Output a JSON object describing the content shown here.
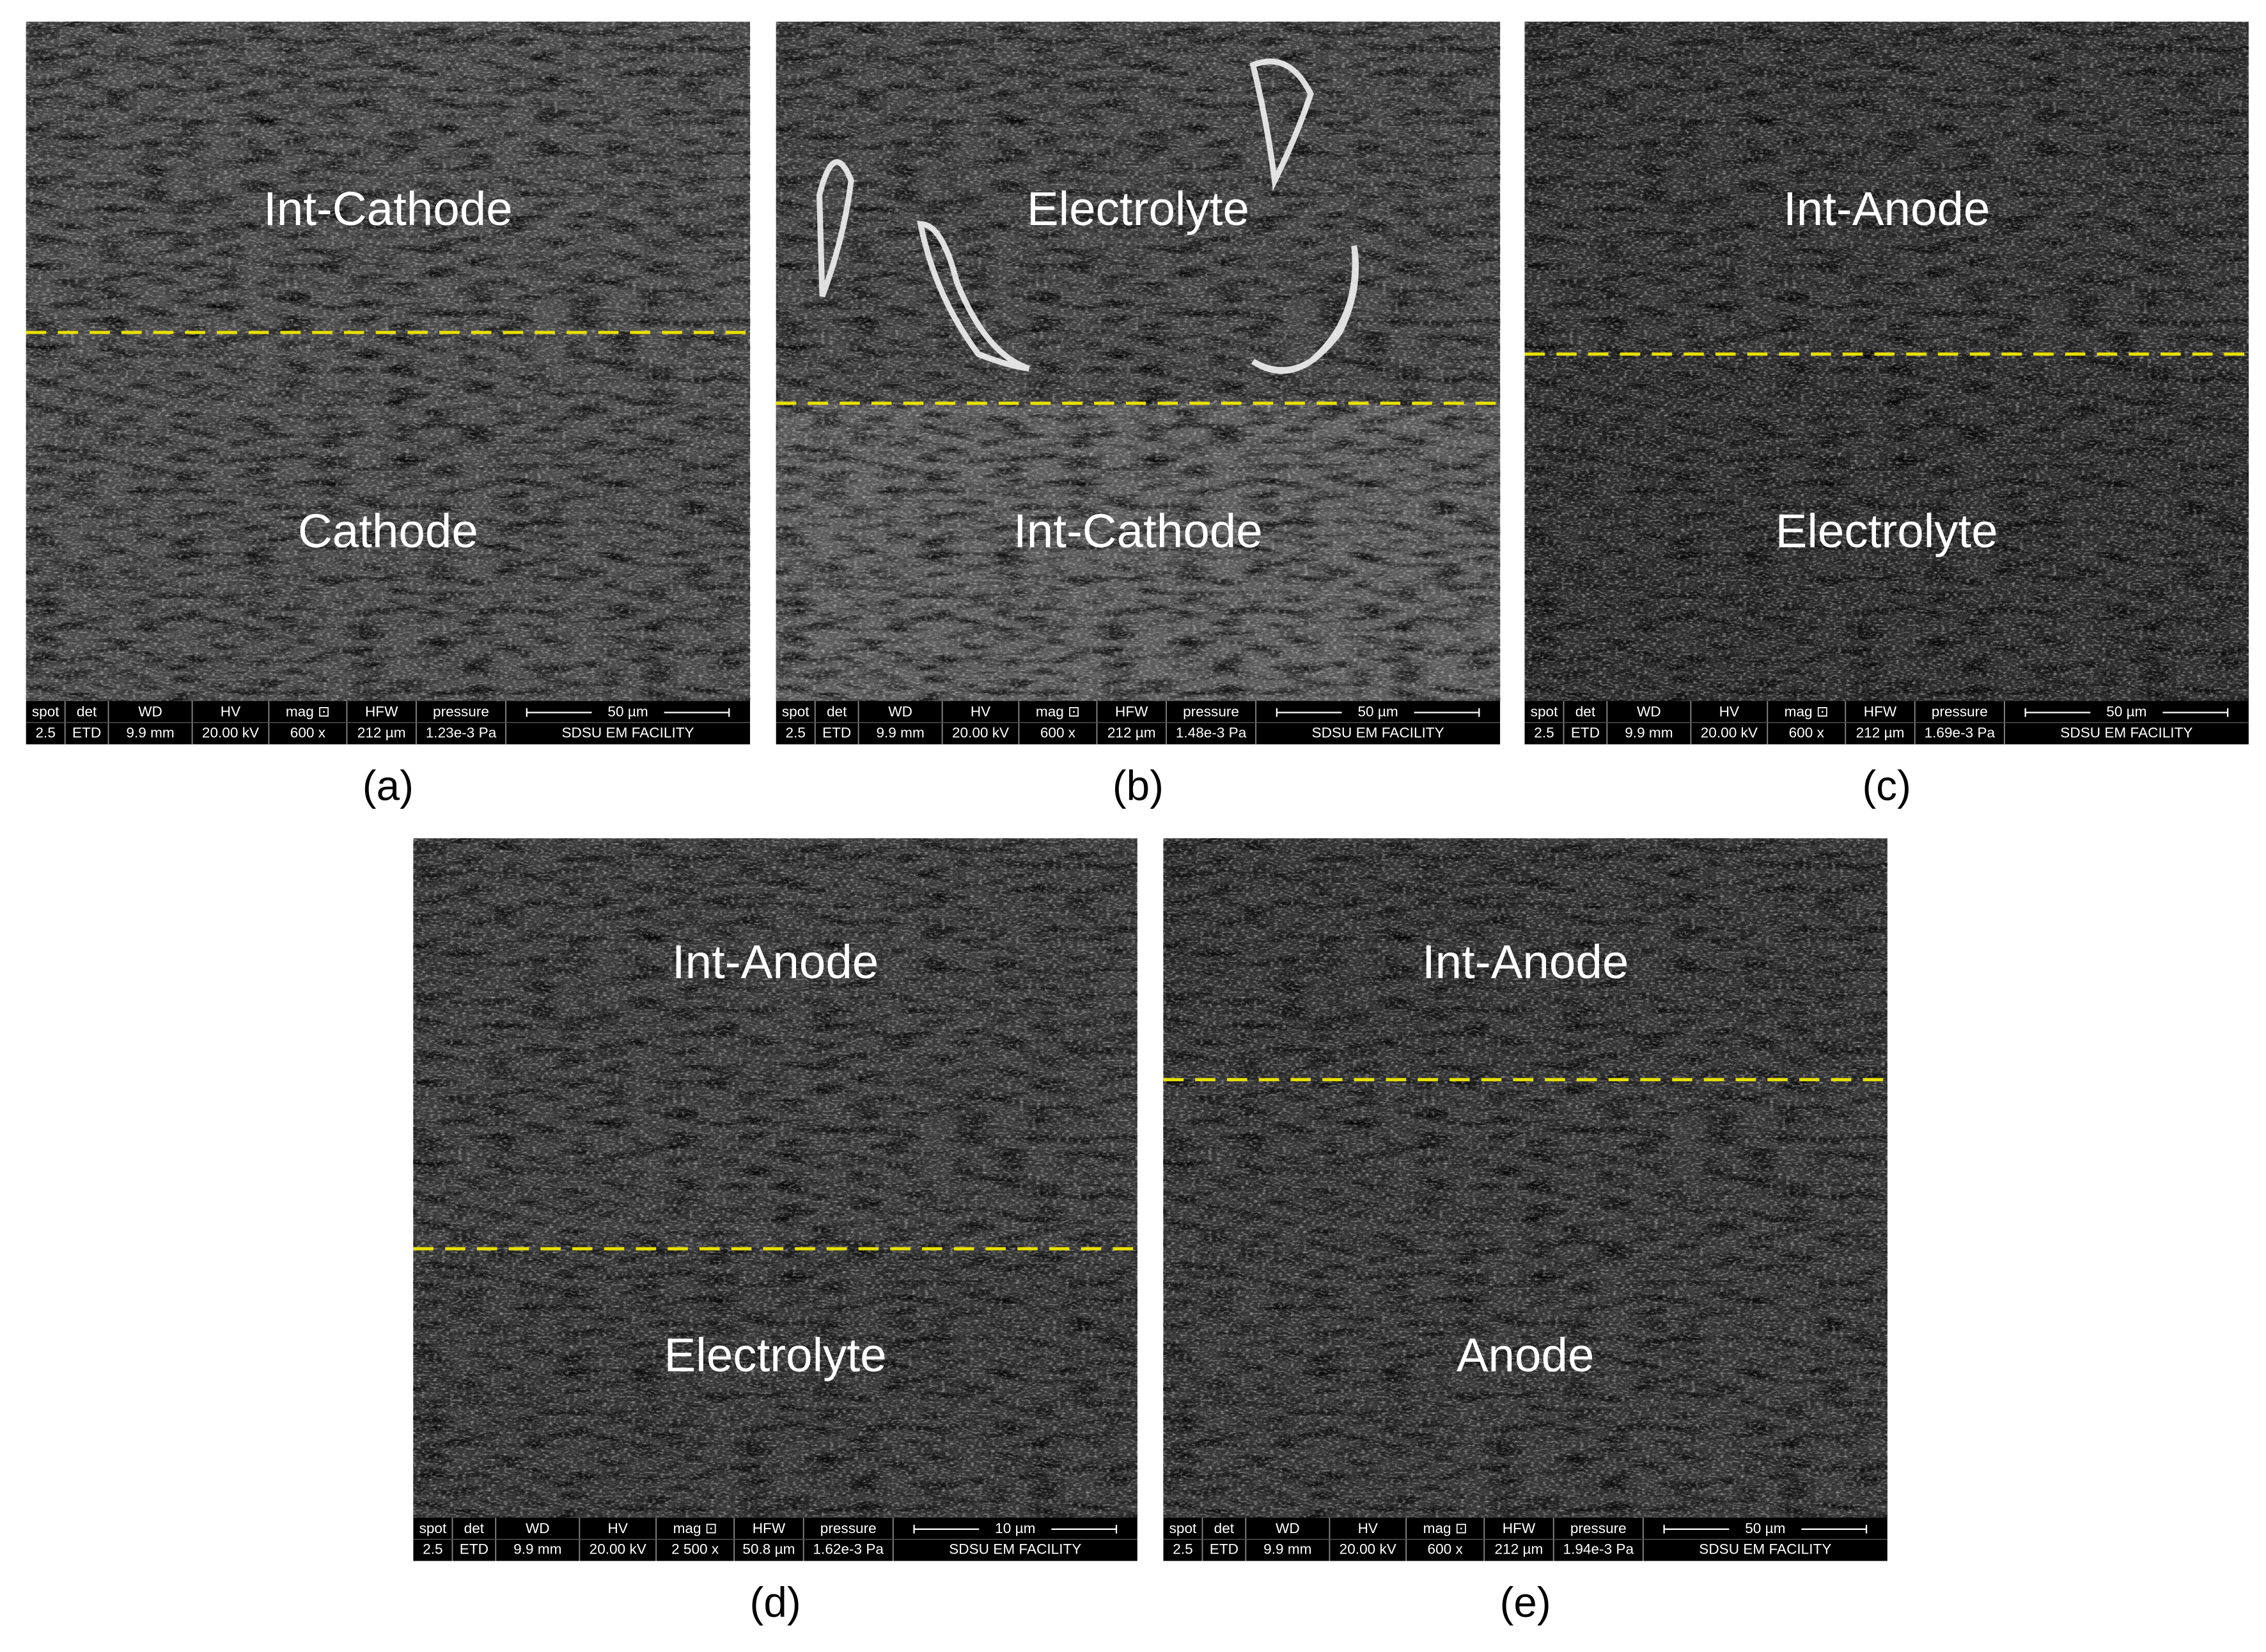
{
  "panels": [
    {
      "label": "(a)",
      "top_text": "Int-Cathode",
      "bottom_text": "Cathode",
      "info_headers": [
        "spot",
        "det",
        "WD",
        "HV",
        "mag ⊡",
        "HFW",
        "pressure",
        "50 µm"
      ],
      "info_values": [
        "2.5",
        "ETD",
        "9.9 mm",
        "20.00 kV",
        "600 x",
        "212 µm",
        "1.23e-3 Pa",
        "SDSU EM FACILITY"
      ]
    },
    {
      "label": "(b)",
      "top_text": "Electrolyte",
      "bottom_text": "Int-Cathode",
      "info_headers": [
        "spot",
        "det",
        "WD",
        "HV",
        "mag ⊡",
        "HFW",
        "pressure",
        "50 µm"
      ],
      "info_values": [
        "2.5",
        "ETD",
        "9.9 mm",
        "20.00 kV",
        "600 x",
        "212 µm",
        "1.48e-3 Pa",
        "SDSU EM FACILITY"
      ]
    },
    {
      "label": "(c)",
      "top_text": "Int-Anode",
      "bottom_text": "Electrolyte",
      "info_headers": [
        "spot",
        "det",
        "WD",
        "HV",
        "mag ⊡",
        "HFW",
        "pressure",
        "50 µm"
      ],
      "info_values": [
        "2.5",
        "ETD",
        "9.9 mm",
        "20.00 kV",
        "600 x",
        "212 µm",
        "1.69e-3 Pa",
        "SDSU EM FACILITY"
      ]
    },
    {
      "label": "(d)",
      "top_text": "Int-Anode",
      "bottom_text": "Electrolyte",
      "info_headers": [
        "spot",
        "det",
        "WD",
        "HV",
        "mag ⊡",
        "HFW",
        "pressure",
        "10 µm"
      ],
      "info_values": [
        "2.5",
        "ETD",
        "9.9 mm",
        "20.00 kV",
        "2 500 x",
        "50.8 µm",
        "1.62e-3 Pa",
        "SDSU EM FACILITY"
      ]
    },
    {
      "label": "(e)",
      "top_text": "Int-Anode",
      "bottom_text": "Anode",
      "info_headers": [
        "spot",
        "det",
        "WD",
        "HV",
        "mag ⊡",
        "HFW",
        "pressure",
        "50 µm"
      ],
      "info_values": [
        "2.5",
        "ETD",
        "9.9 mm",
        "20.00 kV",
        "600 x",
        "212 µm",
        "1.94e-3 Pa",
        "SDSU EM FACILITY"
      ]
    }
  ]
}
